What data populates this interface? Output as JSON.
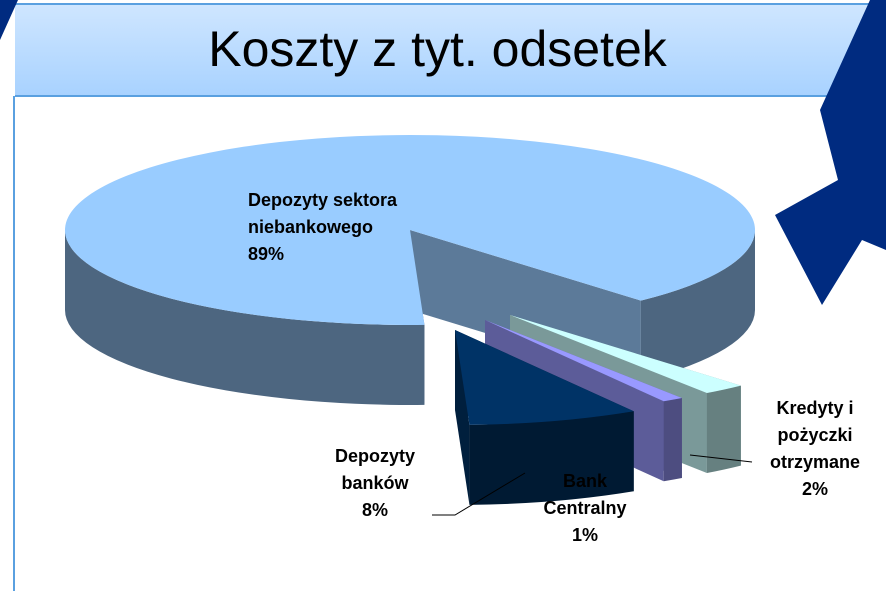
{
  "chart_data": {
    "type": "pie3d",
    "title": "Koszty z tyt. odsetek",
    "categories": [
      "Depozyty sektora niebankowego",
      "Depozyty banków",
      "Bank Centralny",
      "Kredyty i pożyczki otrzymane"
    ],
    "values": [
      89,
      8,
      1,
      2
    ],
    "value_labels": [
      "89%",
      "8%",
      "1%",
      "2%"
    ],
    "colors": [
      "#99ccff",
      "#003366",
      "#9999ff",
      "#ccffff"
    ]
  }
}
